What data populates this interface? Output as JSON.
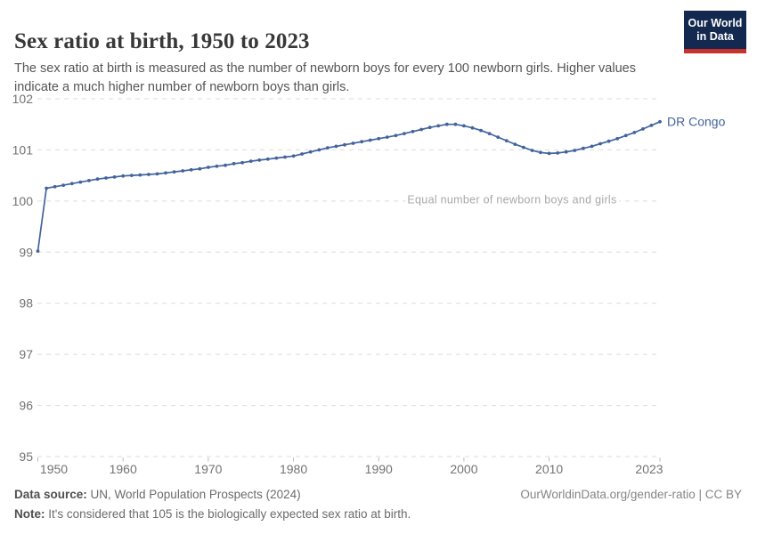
{
  "header": {
    "title": "Sex ratio at birth, 1950 to 2023",
    "subtitle": "The sex ratio at birth is measured as the number of newborn boys for every 100 newborn girls. Higher values indicate a much higher number of newborn boys than girls.",
    "logo_line1": "Our World",
    "logo_line2": "in Data"
  },
  "chart_data": {
    "type": "line",
    "title": "Sex ratio at birth, 1950 to 2023",
    "xlabel": "",
    "ylabel": "",
    "ylim": [
      95,
      102
    ],
    "yticks": [
      95,
      96,
      97,
      98,
      99,
      100,
      101,
      102
    ],
    "xticks": [
      1950,
      1960,
      1970,
      1980,
      1990,
      2000,
      2010,
      2023
    ],
    "grid": true,
    "legend_position": "end-of-line",
    "annotation": {
      "text": "Equal number of newborn boys and girls",
      "y": 100
    },
    "x": [
      1950,
      1951,
      1952,
      1953,
      1954,
      1955,
      1956,
      1957,
      1958,
      1959,
      1960,
      1961,
      1962,
      1963,
      1964,
      1965,
      1966,
      1967,
      1968,
      1969,
      1970,
      1971,
      1972,
      1973,
      1974,
      1975,
      1976,
      1977,
      1978,
      1979,
      1980,
      1981,
      1982,
      1983,
      1984,
      1985,
      1986,
      1987,
      1988,
      1989,
      1990,
      1991,
      1992,
      1993,
      1994,
      1995,
      1996,
      1997,
      1998,
      1999,
      2000,
      2001,
      2002,
      2003,
      2004,
      2005,
      2006,
      2007,
      2008,
      2009,
      2010,
      2011,
      2012,
      2013,
      2014,
      2015,
      2016,
      2017,
      2018,
      2019,
      2020,
      2021,
      2022,
      2023
    ],
    "series": [
      {
        "name": "DR Congo",
        "color": "#42639c",
        "values": [
          99.02,
          100.25,
          100.28,
          100.31,
          100.34,
          100.37,
          100.4,
          100.43,
          100.45,
          100.47,
          100.49,
          100.5,
          100.51,
          100.52,
          100.53,
          100.55,
          100.57,
          100.59,
          100.61,
          100.63,
          100.66,
          100.68,
          100.7,
          100.73,
          100.75,
          100.78,
          100.8,
          100.82,
          100.84,
          100.86,
          100.88,
          100.92,
          100.96,
          101.0,
          101.04,
          101.07,
          101.1,
          101.13,
          101.16,
          101.19,
          101.22,
          101.25,
          101.28,
          101.32,
          101.36,
          101.4,
          101.44,
          101.47,
          101.5,
          101.5,
          101.47,
          101.43,
          101.38,
          101.32,
          101.25,
          101.18,
          101.11,
          101.05,
          100.99,
          100.95,
          100.93,
          100.94,
          100.96,
          100.99,
          101.03,
          101.07,
          101.12,
          101.17,
          101.22,
          101.28,
          101.34,
          101.41,
          101.48,
          101.55
        ]
      }
    ],
    "colors": {
      "line": "#42639c",
      "gridline": "#dcdcdc",
      "tick": "#bbbbbb",
      "axis_text": "#737373",
      "annotation_text": "#a8a8a8"
    }
  },
  "footer": {
    "source_label": "Data source:",
    "source_rest": " UN, World Population Prospects (2024)",
    "rights": "OurWorldinData.org/gender-ratio | CC BY",
    "note_label": "Note:",
    "note_rest": " It's considered that 105 is the biologically expected sex ratio at birth."
  }
}
